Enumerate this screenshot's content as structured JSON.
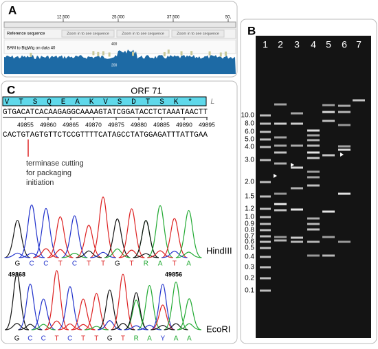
{
  "panel_a": {
    "label": "A",
    "ruler": [
      "12,500",
      "25,000",
      "37,500",
      "50,"
    ],
    "reference_track": "Reference sequence",
    "zoom_notes": [
      "Zoom in to see sequence",
      "Zoom in to see sequence",
      "Zoom in to see sequence"
    ],
    "coverage_track": "BAM to BigWig on data 40",
    "scale": [
      "400",
      "200"
    ]
  },
  "panel_b": {
    "label": "B",
    "lanes": [
      "1",
      "2",
      "3",
      "4",
      "5",
      "6",
      "7"
    ],
    "ladder": [
      "10.0",
      "8.0",
      "6.0",
      "5.0",
      "4.0",
      "3.0",
      "2.0",
      "1.5",
      "1.2",
      "1.0",
      "0.9",
      "0.8",
      "0.7",
      "0.6",
      "0.5",
      "0.4",
      "0.3",
      "0.2",
      "0.1"
    ]
  },
  "panel_c": {
    "label": "C",
    "orf": "ORF 71",
    "amino_acids": [
      "V",
      "T",
      "S",
      "Q",
      "E",
      "A",
      "K",
      "V",
      "S",
      "D",
      "T",
      "S",
      "K",
      "*"
    ],
    "trailing": "L",
    "top_strand": "GTGACATCACAAGAGGCAAAAGTATCGGATACCTCTAAATAACTT",
    "positions": [
      49855,
      49860,
      49865,
      49870,
      49875,
      49880,
      49885,
      49890,
      49895
    ],
    "bottom_strand": "CACTGTAGTGTTCTCCGTTTTCATAGCCTATGGAGATTTATTGAA",
    "annotation": [
      "terminase cutting",
      "for packaging",
      "initiation"
    ],
    "traces": [
      {
        "enzyme": "HindIII",
        "bases": [
          "G",
          "C",
          "C",
          "T",
          "C",
          "T",
          "T",
          "G",
          "T",
          "R",
          "A",
          "T",
          "A"
        ],
        "start": 49868,
        "end": 49856
      },
      {
        "enzyme": "EcoRI",
        "bases": [
          "G",
          "C",
          "C",
          "T",
          "C",
          "T",
          "T",
          "G",
          "T",
          "R",
          "A",
          "Y",
          "A",
          "A"
        ]
      }
    ]
  }
}
